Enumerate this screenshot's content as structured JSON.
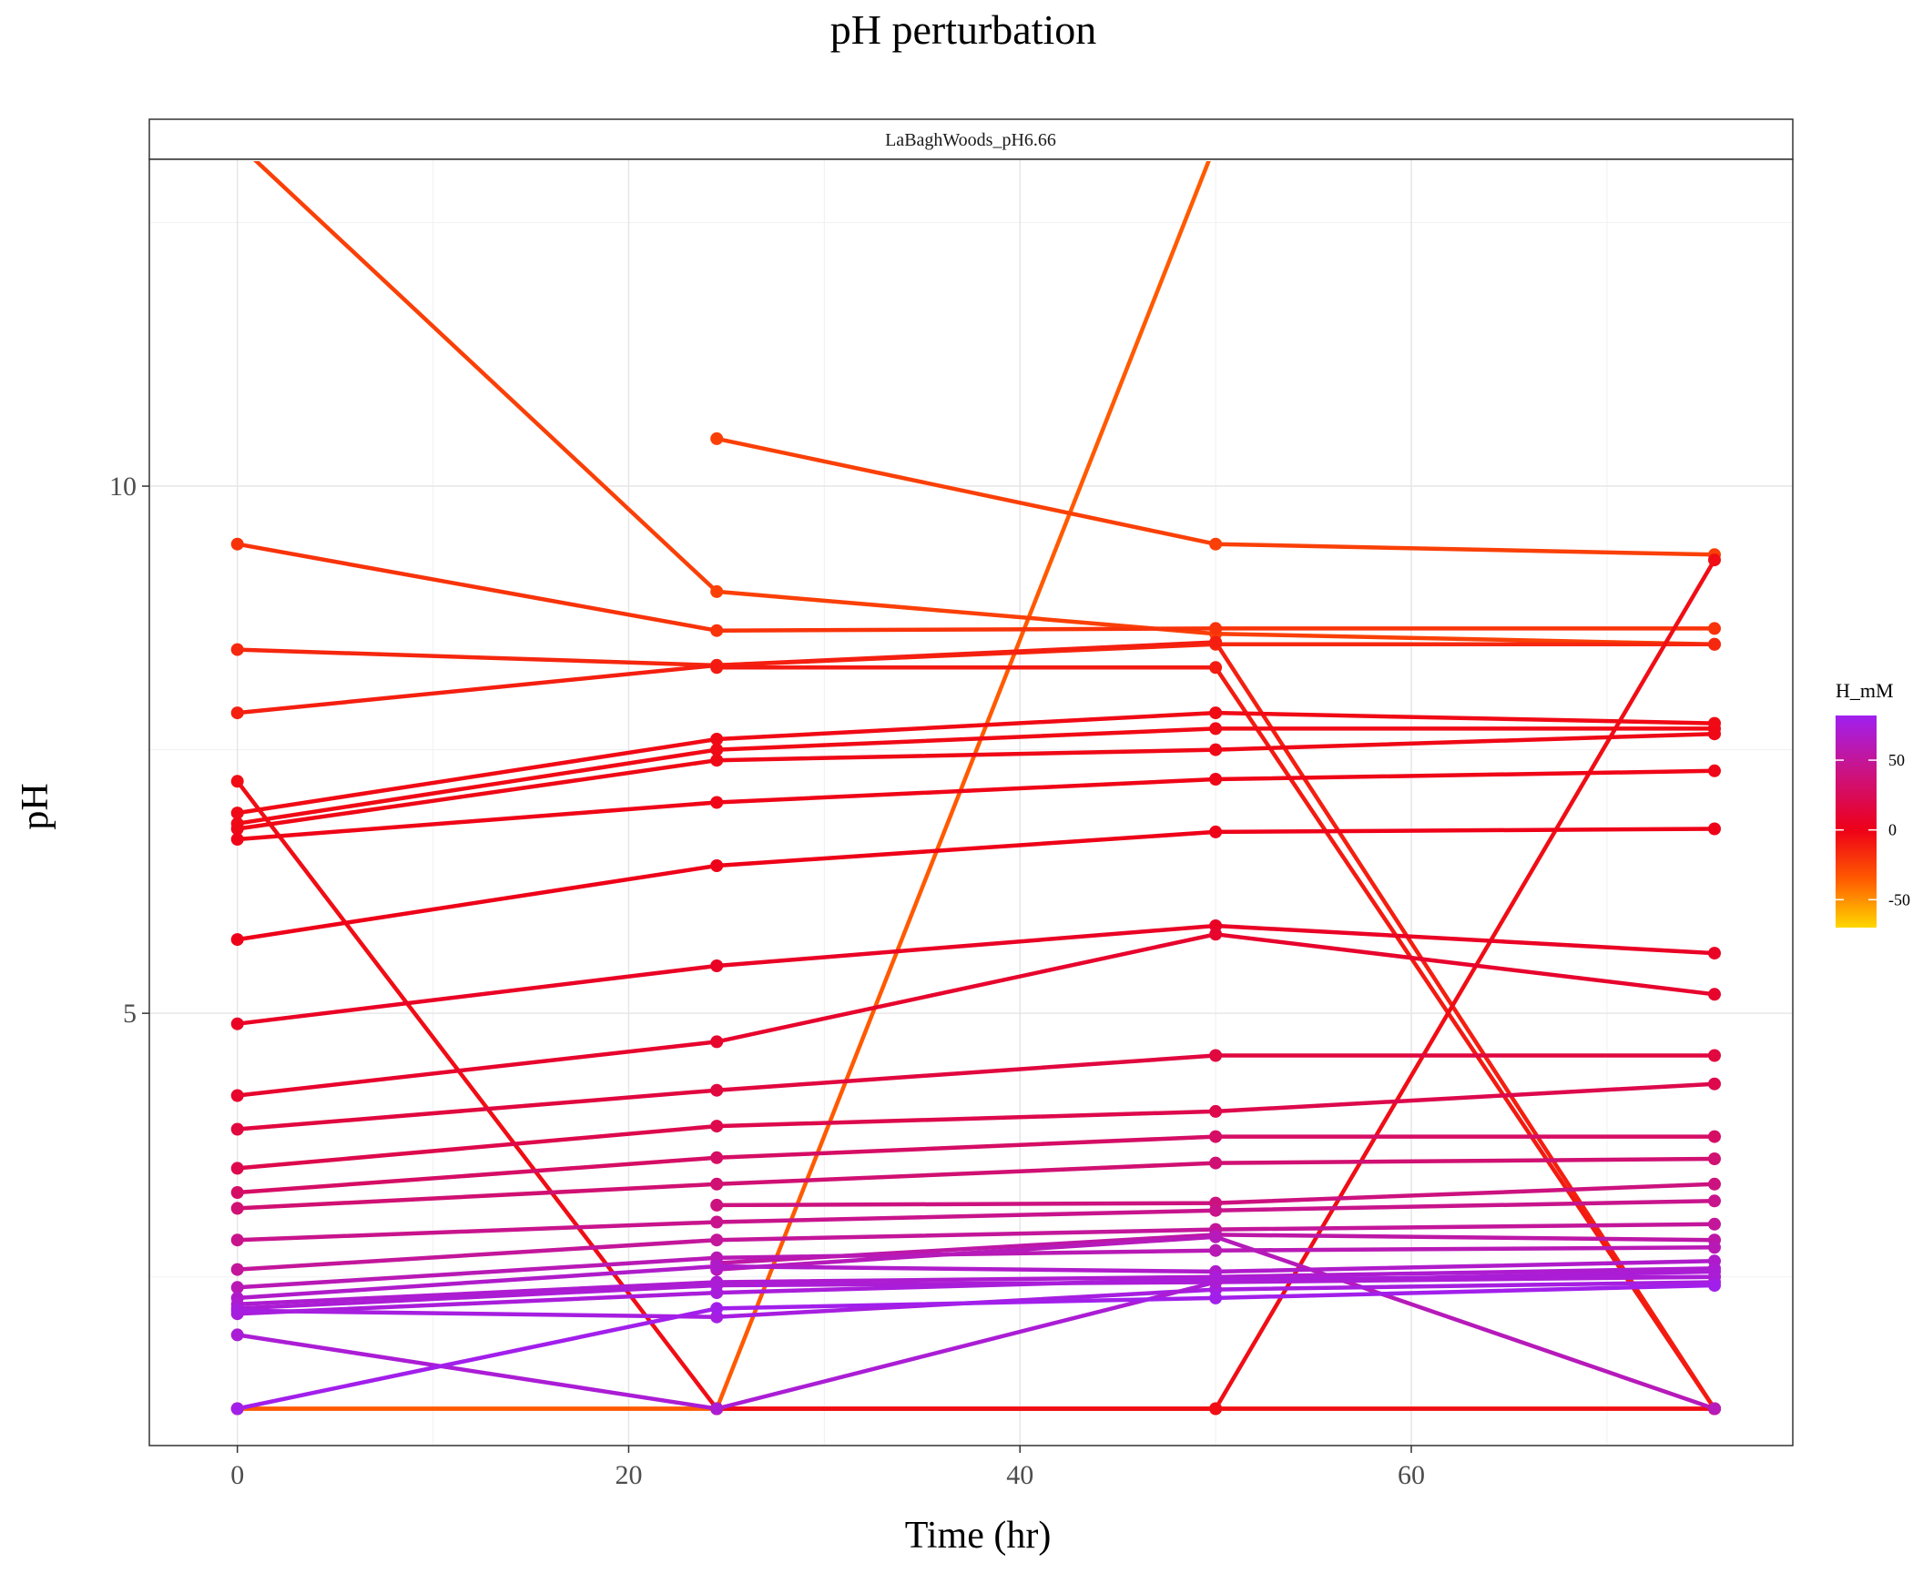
{
  "chart_data": {
    "type": "line",
    "title": "pH perturbation",
    "facet_label": "LaBaghWoods_pH6.66",
    "xlabel": "Time (hr)",
    "ylabel": "pH",
    "xlim": [
      -4.5,
      79.5
    ],
    "ylim": [
      0.9,
      13.1
    ],
    "x_ticks": [
      0,
      20,
      40,
      60
    ],
    "y_ticks": [
      5,
      10
    ],
    "grid": true,
    "legend": {
      "title": "H_mM",
      "position": "right",
      "ticks": [
        50,
        0,
        -50
      ],
      "range": [
        -70,
        82
      ],
      "color_stops": [
        {
          "value": -70,
          "color": "#FFD700"
        },
        {
          "value": -35,
          "color": "#FF5A00"
        },
        {
          "value": 0,
          "color": "#EE0018"
        },
        {
          "value": 45,
          "color": "#C8148C"
        },
        {
          "value": 82,
          "color": "#A020F0"
        }
      ]
    },
    "series": [
      {
        "h": -30,
        "x": [
          0,
          24.5,
          75.5
        ],
        "y": [
          1.25,
          1.25,
          1.25
        ]
      },
      {
        "h": -35,
        "x": [
          0,
          24.5,
          50,
          75.5
        ],
        "y": [
          1.25,
          1.25,
          1.25,
          1.25
        ]
      },
      {
        "h": -35,
        "x": [
          24.5,
          50,
          75.5
        ],
        "y": [
          1.25,
          13.25,
          13.25
        ]
      },
      {
        "h": -25,
        "x": [
          0,
          24.5,
          50,
          75.5
        ],
        "y": [
          13.25,
          9.0,
          8.6,
          8.5
        ]
      },
      {
        "h": -25,
        "x": [
          24.5,
          50,
          75.5
        ],
        "y": [
          10.45,
          9.45,
          9.35
        ]
      },
      {
        "h": -20,
        "x": [
          0,
          24.5,
          50,
          75.5
        ],
        "y": [
          9.45,
          8.63,
          8.65,
          8.65
        ]
      },
      {
        "h": -15,
        "x": [
          0,
          24.5,
          50,
          75.5
        ],
        "y": [
          8.45,
          8.3,
          8.5,
          8.5
        ]
      },
      {
        "h": -12,
        "x": [
          0,
          24.5,
          50,
          75.5
        ],
        "y": [
          7.85,
          8.3,
          8.52,
          1.25
        ]
      },
      {
        "h": -10,
        "x": [
          24.5,
          50,
          75.5
        ],
        "y": [
          8.28,
          8.28,
          1.25
        ]
      },
      {
        "h": -5,
        "x": [
          0,
          24.5,
          75.5
        ],
        "y": [
          7.2,
          1.25,
          1.25
        ]
      },
      {
        "h": -5,
        "x": [
          24.5,
          50,
          75.5
        ],
        "y": [
          1.25,
          1.25,
          9.3
        ]
      },
      {
        "h": -4,
        "x": [
          0,
          24.5,
          50,
          75.5
        ],
        "y": [
          6.9,
          7.6,
          7.85,
          7.75
        ]
      },
      {
        "h": -4,
        "x": [
          0,
          24.5,
          50,
          75.5
        ],
        "y": [
          6.8,
          7.5,
          7.7,
          7.7
        ]
      },
      {
        "h": -3,
        "x": [
          0,
          24.5,
          50,
          75.5
        ],
        "y": [
          6.75,
          7.4,
          7.5,
          7.65
        ]
      },
      {
        "h": -2,
        "x": [
          0,
          24.5,
          50,
          75.5
        ],
        "y": [
          6.65,
          7.0,
          7.22,
          7.3
        ]
      },
      {
        "h": 0,
        "x": [
          0,
          24.5,
          50,
          75.5
        ],
        "y": [
          5.7,
          6.4,
          6.72,
          6.75
        ]
      },
      {
        "h": 5,
        "x": [
          0,
          24.5,
          50,
          75.5
        ],
        "y": [
          4.9,
          5.45,
          5.83,
          5.57
        ]
      },
      {
        "h": 8,
        "x": [
          0,
          24.5,
          50,
          75.5
        ],
        "y": [
          4.22,
          4.73,
          5.75,
          5.18
        ]
      },
      {
        "h": 15,
        "x": [
          0,
          24.5,
          50,
          75.5
        ],
        "y": [
          3.9,
          4.27,
          4.6,
          4.6
        ]
      },
      {
        "h": 20,
        "x": [
          0,
          24.5,
          50,
          75.5
        ],
        "y": [
          3.53,
          3.93,
          4.07,
          4.33
        ]
      },
      {
        "h": 30,
        "x": [
          0,
          24.5,
          50,
          75.5
        ],
        "y": [
          3.3,
          3.63,
          3.83,
          3.83
        ]
      },
      {
        "h": 35,
        "x": [
          0,
          24.5,
          50,
          75.5
        ],
        "y": [
          3.15,
          3.38,
          3.58,
          3.62
        ]
      },
      {
        "h": 40,
        "x": [
          24.5,
          50,
          75.5
        ],
        "y": [
          3.18,
          3.2,
          3.38
        ]
      },
      {
        "h": 45,
        "x": [
          0,
          24.5,
          50,
          75.5
        ],
        "y": [
          2.85,
          3.02,
          3.13,
          3.22
        ]
      },
      {
        "h": 50,
        "x": [
          0,
          24.5,
          50,
          75.5
        ],
        "y": [
          2.57,
          2.85,
          2.95,
          3.0
        ]
      },
      {
        "h": 55,
        "x": [
          24.5,
          50,
          75.5
        ],
        "y": [
          2.63,
          2.9,
          2.85
        ]
      },
      {
        "h": 60,
        "x": [
          0,
          24.5,
          50,
          75.5
        ],
        "y": [
          2.4,
          2.68,
          2.75,
          2.78
        ]
      },
      {
        "h": 62,
        "x": [
          24.5,
          50,
          75.5
        ],
        "y": [
          2.57,
          2.88,
          1.25
        ]
      },
      {
        "h": 68,
        "x": [
          0,
          24.5,
          50,
          75.5
        ],
        "y": [
          2.3,
          2.6,
          2.55,
          2.65
        ]
      },
      {
        "h": 70,
        "x": [
          0,
          24.5,
          50,
          75.5
        ],
        "y": [
          2.24,
          2.45,
          2.5,
          2.58
        ]
      },
      {
        "h": 72,
        "x": [
          0,
          24.5,
          50,
          75.5
        ],
        "y": [
          2.2,
          2.42,
          2.45,
          2.55
        ]
      },
      {
        "h": 74,
        "x": [
          0,
          24.5,
          50,
          75.5
        ],
        "y": [
          2.15,
          2.35,
          2.48,
          2.5
        ]
      },
      {
        "h": 76,
        "x": [
          0,
          24.5,
          50,
          75.5
        ],
        "y": [
          2.18,
          2.12,
          2.38,
          2.45
        ]
      },
      {
        "h": 72,
        "x": [
          0,
          24.5,
          50,
          75.5
        ],
        "y": [
          1.95,
          1.25,
          2.45,
          2.5
        ]
      },
      {
        "h": 80,
        "x": [
          0,
          24.5,
          50,
          75.5
        ],
        "y": [
          1.25,
          2.2,
          2.3,
          2.42
        ]
      }
    ]
  }
}
